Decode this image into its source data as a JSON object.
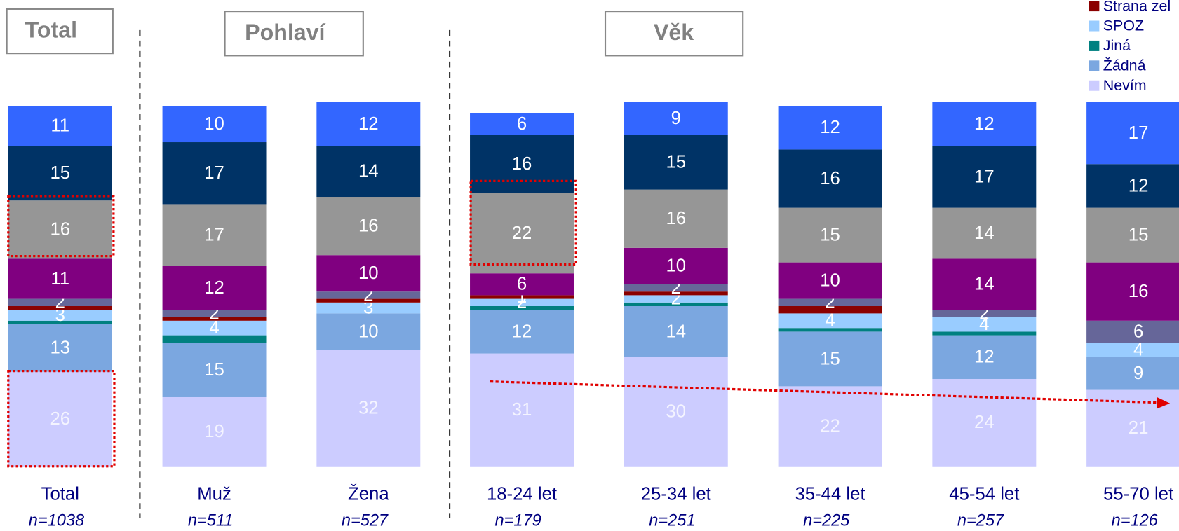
{
  "chart_data": {
    "type": "stacked-bar",
    "groups": [
      "Total",
      "Pohlaví",
      "Věk"
    ],
    "categories": [
      "Total",
      "Muž",
      "Žena",
      "18-24 let",
      "25-34 let",
      "35-44 let",
      "45-54 let",
      "55-70 let"
    ],
    "sample_sizes": [
      "n=1038",
      "n=511",
      "n=527",
      "n=179",
      "n=251",
      "n=225",
      "n=257",
      "n=126"
    ],
    "ylim": [
      0,
      100
    ],
    "series": [
      {
        "color": "#3366ff",
        "values": [
          11,
          10,
          12,
          6,
          9,
          12,
          12,
          17
        ],
        "value_labels": [
          "11",
          "10",
          "12",
          "6",
          "9",
          "12",
          "12",
          "17"
        ]
      },
      {
        "color": "#003366",
        "values": [
          15,
          17,
          14,
          16,
          15,
          16,
          17,
          12
        ],
        "value_labels": [
          "15",
          "17",
          "14",
          "16",
          "15",
          "16",
          "17",
          "12"
        ]
      },
      {
        "color": "#969696",
        "values": [
          16,
          17,
          16,
          22,
          16,
          15,
          14,
          15
        ],
        "value_labels": [
          "16",
          "17",
          "16",
          "22",
          "16",
          "15",
          "14",
          "15"
        ]
      },
      {
        "color": "#800080",
        "values": [
          11,
          12,
          10,
          6,
          10,
          10,
          14,
          16
        ],
        "value_labels": [
          "11",
          "12",
          "10",
          "6",
          "10",
          "10",
          "14",
          "16"
        ]
      },
      {
        "color": "#666699",
        "values": [
          2,
          2,
          2,
          0,
          2,
          2,
          2,
          6
        ],
        "value_labels": [
          "2",
          "2",
          "2",
          null,
          "2",
          "2",
          "2",
          "6"
        ]
      },
      {
        "name": "Strana zel",
        "color": "#8b0000",
        "values": [
          1,
          1,
          1,
          1,
          1,
          2,
          0,
          0
        ],
        "value_labels": [
          null,
          null,
          null,
          "1",
          null,
          null,
          null,
          null
        ]
      },
      {
        "name": "SPOZ",
        "color": "#99ccff",
        "values": [
          3,
          4,
          3,
          2,
          2,
          4,
          4,
          4
        ],
        "value_labels": [
          "3",
          "4",
          "3",
          "2",
          "2",
          "4",
          "4",
          "4"
        ]
      },
      {
        "name": "Jiná",
        "color": "#008080",
        "values": [
          1,
          2,
          0,
          1,
          1,
          1,
          1,
          0
        ],
        "value_labels": [
          null,
          null,
          null,
          null,
          null,
          null,
          null,
          null
        ]
      },
      {
        "name": "Žádná",
        "color": "#7ba7e0",
        "values": [
          13,
          15,
          10,
          12,
          14,
          15,
          12,
          9
        ],
        "value_labels": [
          "13",
          "15",
          "10",
          "12",
          "14",
          "15",
          "12",
          "9"
        ]
      },
      {
        "name": "Nevím",
        "color": "#ccccff",
        "values": [
          26,
          19,
          32,
          31,
          30,
          22,
          24,
          21
        ],
        "value_labels": [
          "26",
          "19",
          "32",
          "31",
          "30",
          "22",
          "24",
          "21"
        ]
      }
    ]
  }
}
